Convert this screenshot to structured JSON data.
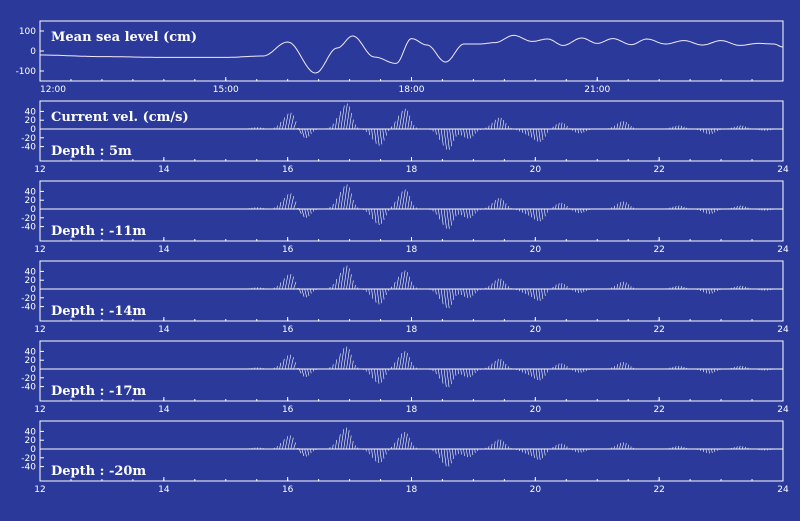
{
  "colors": {
    "background": "#2b3a9a",
    "frame": "#ffffff",
    "line": "#f3e9f6",
    "stick": "#ffffff"
  },
  "chart_data": [
    {
      "type": "line",
      "title": "Mean sea level (cm)",
      "xlim": [
        "12:00",
        "24:00"
      ],
      "x_tick_labels": [
        "12:00",
        "15:00",
        "18:00",
        "21:00"
      ],
      "y_tick_labels": [
        "100",
        "0",
        "-100"
      ],
      "ylim": [
        -150,
        150
      ],
      "x_hours": [
        12,
        13,
        14,
        15,
        15.6,
        16.0,
        16.45,
        16.8,
        17.05,
        17.4,
        17.75,
        18.0,
        18.25,
        18.55,
        18.85,
        19.1,
        19.35,
        19.65,
        19.95,
        20.2,
        20.45,
        20.75,
        21.0,
        21.25,
        21.55,
        21.8,
        22.1,
        22.4,
        22.7,
        23.0,
        23.3,
        23.6,
        23.85,
        24
      ],
      "y_cm": [
        -20,
        -28,
        -32,
        -32,
        -25,
        45,
        -110,
        15,
        75,
        -30,
        -62,
        62,
        30,
        -55,
        35,
        35,
        42,
        78,
        48,
        60,
        28,
        65,
        38,
        62,
        32,
        60,
        35,
        52,
        30,
        52,
        28,
        38,
        35,
        20
      ]
    },
    {
      "type": "vector",
      "label": "Current vel. (cm/s)",
      "depth_label": "Depth : 5m",
      "y_tick_labels": [
        "40",
        "20",
        "0",
        "-20",
        "-40"
      ],
      "x_tick_labels": [
        "12",
        "14",
        "16",
        "18",
        "20",
        "22",
        "24"
      ],
      "xlim": [
        12,
        24
      ],
      "ylim": [
        -50,
        50
      ]
    },
    {
      "type": "vector",
      "depth_label": "Depth : -11m",
      "y_tick_labels": [
        "40",
        "20",
        "0",
        "-20",
        "-40"
      ],
      "x_tick_labels": [
        "12",
        "14",
        "16",
        "18",
        "20",
        "22",
        "24"
      ],
      "xlim": [
        12,
        24
      ],
      "ylim": [
        -50,
        50
      ]
    },
    {
      "type": "vector",
      "depth_label": "Depth : -14m",
      "y_tick_labels": [
        "40",
        "20",
        "0",
        "-20",
        "-40"
      ],
      "x_tick_labels": [
        "12",
        "14",
        "16",
        "18",
        "20",
        "22",
        "24"
      ],
      "xlim": [
        12,
        24
      ],
      "ylim": [
        -50,
        50
      ]
    },
    {
      "type": "vector",
      "depth_label": "Depth : -17m",
      "y_tick_labels": [
        "40",
        "20",
        "0",
        "-20",
        "-40"
      ],
      "x_tick_labels": [
        "12",
        "14",
        "16",
        "18",
        "20",
        "22",
        "24"
      ],
      "xlim": [
        12,
        24
      ],
      "ylim": [
        -50,
        50
      ]
    },
    {
      "type": "vector",
      "depth_label": "Depth : -20m",
      "y_tick_labels": [
        "40",
        "20",
        "0",
        "-20",
        "-40"
      ],
      "x_tick_labels": [
        "12",
        "14",
        "16",
        "18",
        "20",
        "22",
        "24"
      ],
      "xlim": [
        12,
        24
      ],
      "ylim": [
        -50,
        50
      ]
    }
  ],
  "current_velocity_envelopes": [
    {
      "hour": 15.5,
      "u": 2,
      "v": 4
    },
    {
      "hour": 16.0,
      "u": 12,
      "v": 38
    },
    {
      "hour": 16.25,
      "u": 8,
      "v": -22
    },
    {
      "hour": 16.9,
      "u": 14,
      "v": 58
    },
    {
      "hour": 17.45,
      "u": 8,
      "v": -38
    },
    {
      "hour": 17.85,
      "u": 12,
      "v": 46
    },
    {
      "hour": 18.55,
      "u": 10,
      "v": -48
    },
    {
      "hour": 18.9,
      "u": 6,
      "v": -22
    },
    {
      "hour": 19.4,
      "u": 6,
      "v": 26
    },
    {
      "hour": 19.85,
      "u": 4,
      "v": -10
    },
    {
      "hour": 20.05,
      "u": 6,
      "v": -28
    },
    {
      "hour": 20.4,
      "u": 4,
      "v": 15
    },
    {
      "hour": 20.7,
      "u": 4,
      "v": -10
    },
    {
      "hour": 21.4,
      "u": 6,
      "v": 18
    },
    {
      "hour": 22.3,
      "u": 4,
      "v": 8
    },
    {
      "hour": 22.8,
      "u": 4,
      "v": -12
    },
    {
      "hour": 23.3,
      "u": 4,
      "v": 8
    },
    {
      "hour": 23.7,
      "u": 2,
      "v": -4
    }
  ]
}
